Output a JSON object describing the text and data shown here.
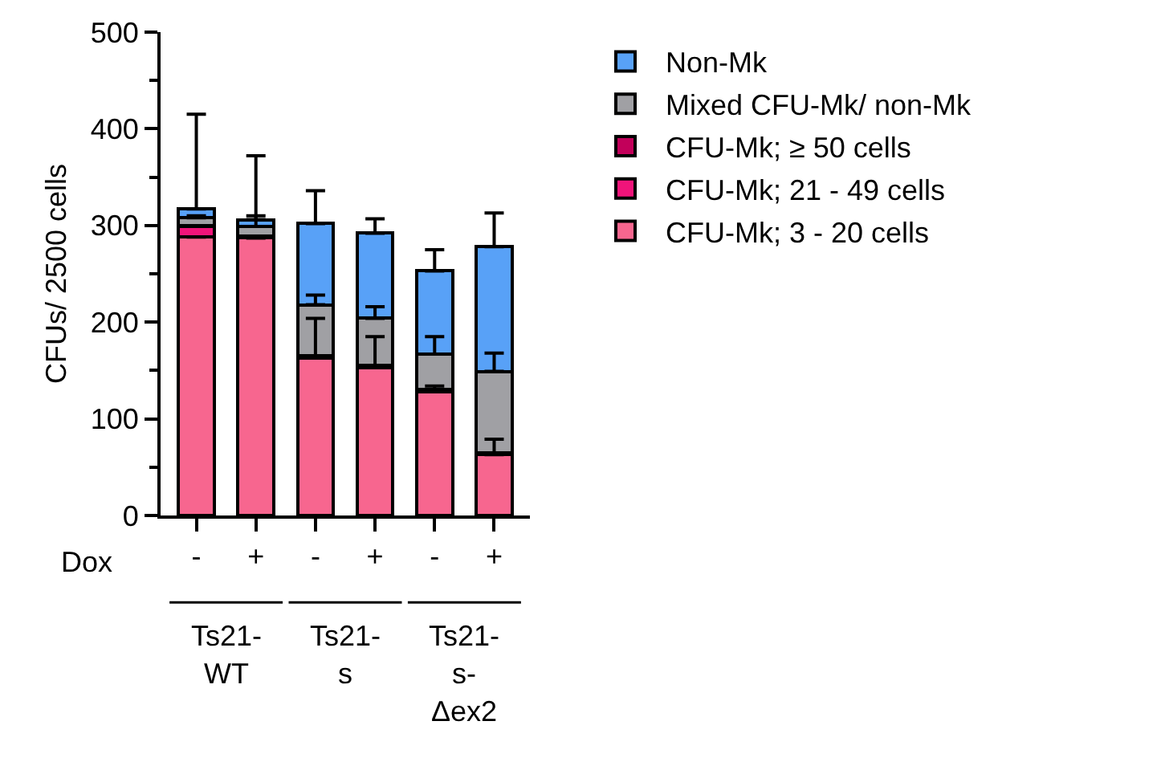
{
  "chart_data": {
    "type": "bar",
    "stacked": true,
    "ylabel": "CFUs/ 2500 cells",
    "categories": [
      "-",
      "+",
      "-",
      "+",
      "-",
      "+"
    ],
    "ylim": [
      0,
      500
    ],
    "yticks": [
      0,
      100,
      200,
      300,
      400,
      500
    ],
    "grid": false,
    "legend": "top right",
    "annotations": [
      "Dox",
      "Ts21-WT",
      "Ts21-s",
      "Ts21-s-Δex2"
    ],
    "series": [
      {
        "name": "CFU-Mk; 3 - 20 cells",
        "color": "#f7668f",
        "values": [
          288,
          287,
          163,
          153,
          128,
          63
        ],
        "errors": [
          null,
          null,
          [
            163,
            204
          ],
          [
            153,
            185
          ],
          [
            128,
            134
          ],
          [
            63,
            79
          ]
        ]
      },
      {
        "name": "CFU-Mk; 21 - 49 cells",
        "color": "#f0147a",
        "values": [
          11,
          1,
          1,
          1,
          1,
          1
        ]
      },
      {
        "name": "CFU-Mk; ≥ 50 cells",
        "color": "#c2005a",
        "values": [
          1,
          1,
          1,
          1,
          1,
          1
        ]
      },
      {
        "name": "Mixed CFU-Mk/ non-Mk",
        "color": "#a0a0a4",
        "values": [
          8,
          10,
          53,
          49,
          37,
          84
        ],
        "errors": [
          [
            308,
            310
          ],
          [
            299,
            310
          ],
          [
            218,
            228
          ],
          [
            204,
            216
          ],
          [
            167,
            185
          ],
          [
            149,
            168
          ]
        ]
      },
      {
        "name": "Non-Mk",
        "color": "#58a1f7",
        "values": [
          9,
          7,
          84,
          88,
          86,
          129
        ],
        "errors": [
          [
            317,
            415
          ],
          [
            306,
            372
          ],
          [
            302,
            336
          ],
          [
            292,
            307
          ],
          [
            253,
            275
          ],
          [
            278,
            313
          ]
        ]
      }
    ]
  }
}
